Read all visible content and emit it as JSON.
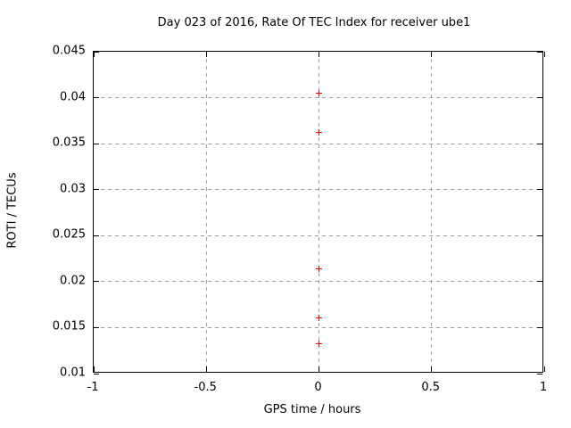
{
  "chart_data": {
    "type": "scatter",
    "title": "Day 023 of 2016, Rate Of TEC Index for receiver ube1",
    "xlabel": "GPS time / hours",
    "ylabel": "ROTI / TECUs",
    "xlim": [
      -1,
      1
    ],
    "ylim": [
      0.01,
      0.045
    ],
    "xticks": [
      -1,
      -0.5,
      0,
      0.5,
      1
    ],
    "xtick_labels": [
      "-1",
      "-0.5",
      "0",
      "0.5",
      "1"
    ],
    "yticks": [
      0.01,
      0.015,
      0.02,
      0.025,
      0.03,
      0.035,
      0.04,
      0.045
    ],
    "ytick_labels": [
      "0.01",
      "0.015",
      "0.02",
      "0.025",
      "0.03",
      "0.035",
      "0.04",
      "0.045"
    ],
    "grid": true,
    "legend": "none",
    "series": [
      {
        "name": "ROTI",
        "marker": "plus",
        "color": "#ee0000",
        "x": [
          0,
          0,
          0,
          0,
          0
        ],
        "y": [
          0.0405,
          0.0362,
          0.0214,
          0.0161,
          0.0132
        ]
      }
    ],
    "colors": {
      "background": "#ffffff",
      "axis": "#000000",
      "text": "#000000",
      "grid": "#9e9e9e"
    }
  }
}
